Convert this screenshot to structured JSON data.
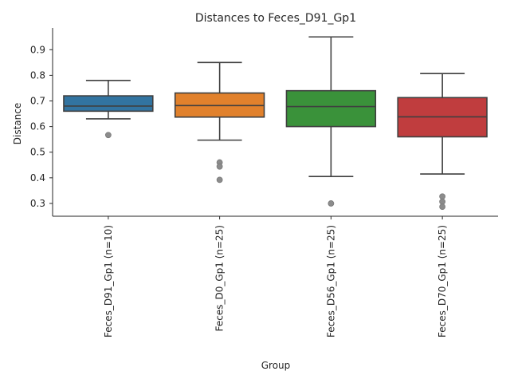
{
  "chart_data": {
    "type": "box",
    "title": "Distances to Feces_D91_Gp1",
    "xlabel": "Group",
    "ylabel": "Distance",
    "ylim": [
      0.25,
      0.985
    ],
    "yticks": [
      "0.3",
      "0.4",
      "0.5",
      "0.6",
      "0.7",
      "0.8",
      "0.9"
    ],
    "grid": false,
    "legend": "none",
    "categories": [
      "Feces_D91_Gp1 (n=10)",
      "Feces_D0_Gp1 (n=25)",
      "Feces_D56_Gp1 (n=25)",
      "Feces_D70_Gp1 (n=25)"
    ],
    "boxes": [
      {
        "whisker_low": 0.63,
        "q1": 0.66,
        "median": 0.68,
        "q3": 0.72,
        "whisker_high": 0.78,
        "outliers": [
          0.567
        ],
        "color": "#3274a1"
      },
      {
        "whisker_low": 0.547,
        "q1": 0.637,
        "median": 0.682,
        "q3": 0.731,
        "whisker_high": 0.85,
        "outliers": [
          0.46,
          0.444,
          0.392
        ],
        "color": "#e1812c"
      },
      {
        "whisker_low": 0.405,
        "q1": 0.6,
        "median": 0.678,
        "q3": 0.74,
        "whisker_high": 0.95,
        "outliers": [
          0.3
        ],
        "color": "#3a923a"
      },
      {
        "whisker_low": 0.415,
        "q1": 0.56,
        "median": 0.638,
        "q3": 0.713,
        "whisker_high": 0.807,
        "outliers": [
          0.327,
          0.307,
          0.287
        ],
        "color": "#c03d3e"
      }
    ]
  }
}
